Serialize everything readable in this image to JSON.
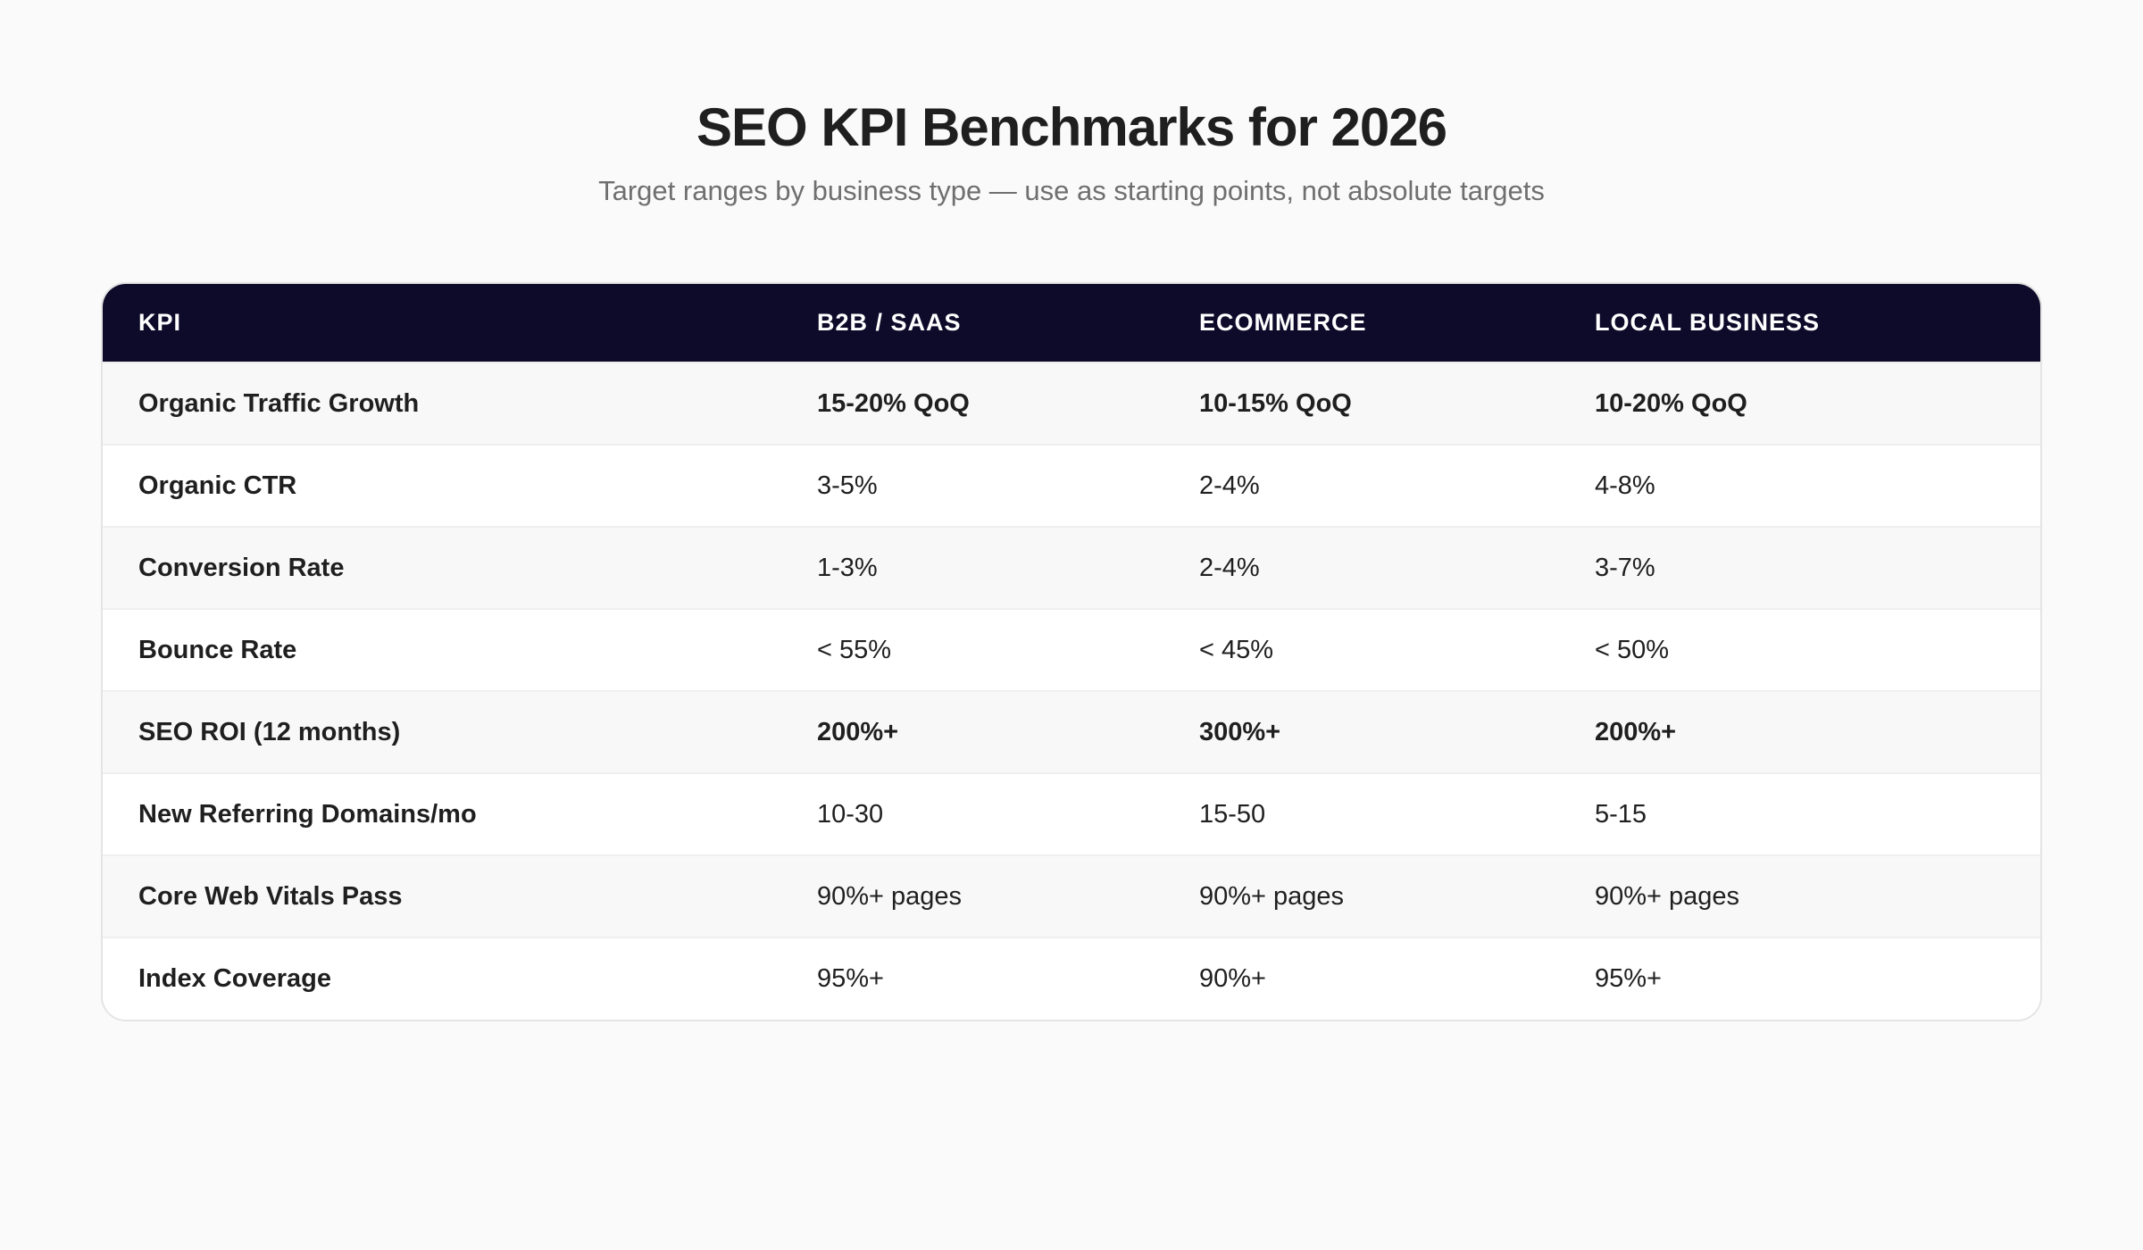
{
  "header": {
    "title": "SEO KPI Benchmarks for 2026",
    "subtitle": "Target ranges by business type — use as starting points, not absolute targets"
  },
  "table": {
    "columns": [
      "KPI",
      "B2B / SaaS",
      "Ecommerce",
      "Local Business"
    ],
    "rows": [
      {
        "kpi": "Organic Traffic Growth",
        "b2b": "15-20% QoQ",
        "ecommerce": "10-15% QoQ",
        "local": "10-20% QoQ"
      },
      {
        "kpi": "Organic CTR",
        "b2b": "3-5%",
        "ecommerce": "2-4%",
        "local": "4-8%"
      },
      {
        "kpi": "Conversion Rate",
        "b2b": "1-3%",
        "ecommerce": "2-4%",
        "local": "3-7%"
      },
      {
        "kpi": "Bounce Rate",
        "b2b": "< 55%",
        "ecommerce": "< 45%",
        "local": "< 50%"
      },
      {
        "kpi": "SEO ROI (12 months)",
        "b2b": "200%+",
        "ecommerce": "300%+",
        "local": "200%+"
      },
      {
        "kpi": "New Referring Domains/mo",
        "b2b": "10-30",
        "ecommerce": "15-50",
        "local": "5-15"
      },
      {
        "kpi": "Core Web Vitals Pass",
        "b2b": "90%+ pages",
        "ecommerce": "90%+ pages",
        "local": "90%+ pages"
      },
      {
        "kpi": "Index Coverage",
        "b2b": "95%+",
        "ecommerce": "90%+",
        "local": "95%+"
      }
    ]
  },
  "colors": {
    "header_bg": "#0e0a2a",
    "page_bg": "#fafafa",
    "row_alt": "#f8f8f8"
  }
}
